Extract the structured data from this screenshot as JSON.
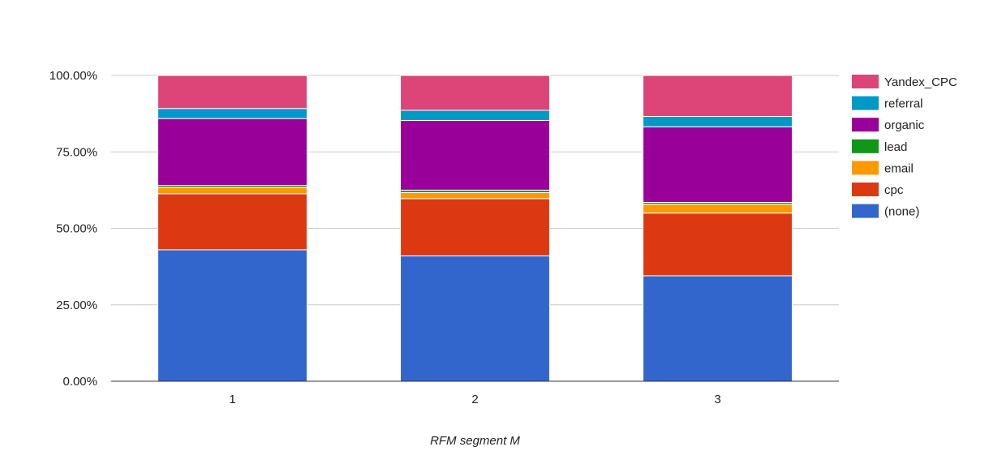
{
  "chart_data": {
    "type": "bar",
    "stacked": true,
    "normalized": true,
    "categories": [
      "1",
      "2",
      "3"
    ],
    "xlabel": "RFM segment M",
    "ylabel": "",
    "ylim": [
      0,
      100
    ],
    "yticks": [
      "0.00%",
      "25.00%",
      "50.00%",
      "75.00%",
      "100.00%"
    ],
    "grid": true,
    "legend_position": "right",
    "series": [
      {
        "name": "(none)",
        "color": "#3366cc",
        "values": [
          43.0,
          41.0,
          34.5
        ]
      },
      {
        "name": "cpc",
        "color": "#dc3912",
        "values": [
          18.3,
          18.7,
          20.5
        ]
      },
      {
        "name": "email",
        "color": "#ff9900",
        "values": [
          2.0,
          2.0,
          2.9
        ]
      },
      {
        "name": "lead",
        "color": "#109618",
        "values": [
          0.7,
          0.8,
          0.6
        ]
      },
      {
        "name": "organic",
        "color": "#990099",
        "values": [
          21.9,
          22.8,
          24.7
        ]
      },
      {
        "name": "referral",
        "color": "#0099c6",
        "values": [
          3.3,
          3.3,
          3.4
        ]
      },
      {
        "name": "Yandex_CPC",
        "color": "#dd4477",
        "values": [
          10.8,
          11.4,
          13.4
        ]
      }
    ]
  }
}
